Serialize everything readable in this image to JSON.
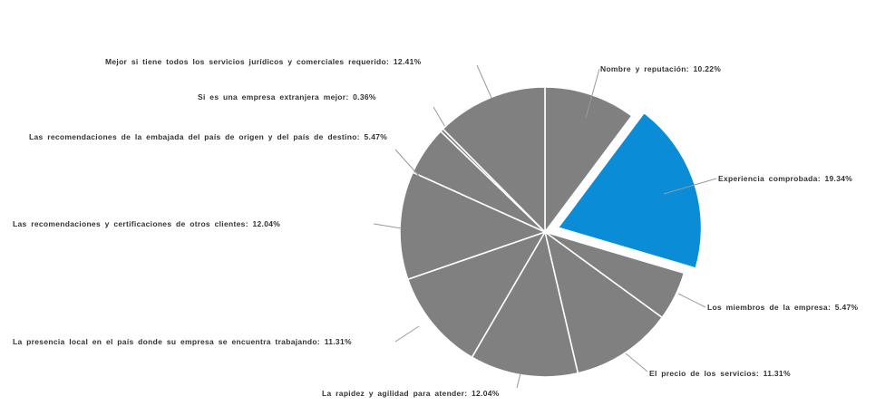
{
  "chart_data": {
    "type": "pie",
    "title": "",
    "slices": [
      {
        "label": "Nombre y reputación",
        "value": 10.22,
        "display": "10.22%",
        "color": "#808080",
        "exploded": false
      },
      {
        "label": "Experiencia comprobada",
        "value": 19.34,
        "display": "19.34%",
        "color": "#0A8DD6",
        "exploded": true
      },
      {
        "label": "Los miembros de la empresa",
        "value": 5.47,
        "display": "5.47%",
        "color": "#808080",
        "exploded": false
      },
      {
        "label": "El precio de los servicios",
        "value": 11.31,
        "display": "11.31%",
        "color": "#808080",
        "exploded": false
      },
      {
        "label": "La rapidez y agilidad para atender",
        "value": 12.04,
        "display": "12.04%",
        "color": "#808080",
        "exploded": false
      },
      {
        "label": "La presencia local en el país donde su empresa se encuentra trabajando",
        "value": 11.31,
        "display": "11.31%",
        "color": "#808080",
        "exploded": false
      },
      {
        "label": "Las recomendaciones y certificaciones de otros clientes",
        "value": 12.04,
        "display": "12.04%",
        "color": "#808080",
        "exploded": false
      },
      {
        "label": "Las recomendaciones de la embajada del país de origen y del país de destino",
        "value": 5.47,
        "display": "5.47%",
        "color": "#808080",
        "exploded": false
      },
      {
        "label": "Si es una empresa extranjera mejor",
        "value": 0.36,
        "display": "0.36%",
        "color": "#808080",
        "exploded": false
      },
      {
        "label": "Mejor si tiene todos los servicios jurídicos y comerciales requerido",
        "value": 12.41,
        "display": "12.41%",
        "color": "#808080",
        "exploded": false
      }
    ],
    "legend": "none",
    "start": "top, clockwise"
  }
}
